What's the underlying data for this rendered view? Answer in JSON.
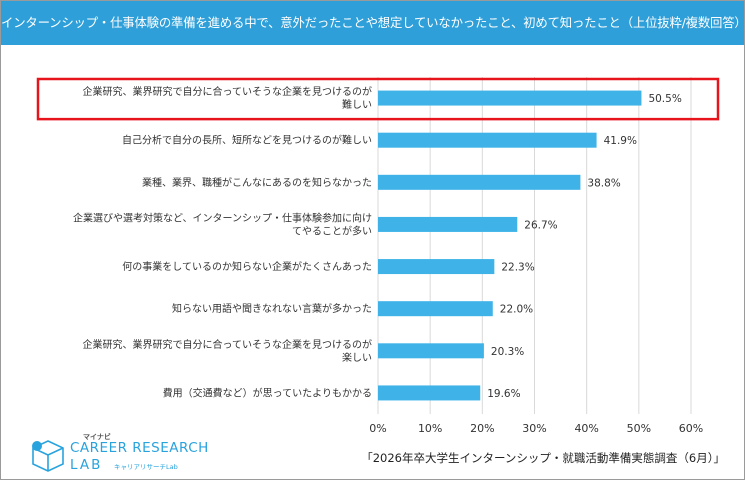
{
  "header": {
    "title": "インターンシップ・仕事体験の準備を進める中で、意外だったことや想定していなかったこと、初めて知ったこと（上位抜粋/複数回答）"
  },
  "chart_data": {
    "type": "bar",
    "orientation": "horizontal",
    "categories": [
      [
        "企業研究、業界研究で自分に合っていそうな企業を見つけるのが",
        "難しい"
      ],
      [
        "自己分析で自分の長所、短所などを見つけるのが難しい"
      ],
      [
        "業種、業界、職種がこんなにあるのを知らなかった"
      ],
      [
        "企業選びや選考対策など、インターンシップ・仕事体験参加に向け",
        "てやることが多い"
      ],
      [
        "何の事業をしているのか知らない企業がたくさんあった"
      ],
      [
        "知らない用語や聞きなれない言葉が多かった"
      ],
      [
        "企業研究、業界研究で自分に合っていそうな企業を見つけるのが",
        "楽しい"
      ],
      [
        "費用（交通費など）が思っていたよりもかかる"
      ]
    ],
    "values": [
      50.5,
      41.9,
      38.8,
      26.7,
      22.3,
      22.0,
      20.3,
      19.6
    ],
    "value_labels": [
      "50.5%",
      "41.9%",
      "38.8%",
      "26.7%",
      "22.3%",
      "22.0%",
      "20.3%",
      "19.6%"
    ],
    "xlim": [
      0,
      60
    ],
    "xticks": [
      "0%",
      "10%",
      "20%",
      "30%",
      "40%",
      "50%",
      "60%"
    ],
    "highlight_index": 0,
    "bar_color": "#3fb3e8",
    "highlight_color": "#e8141c",
    "grid": true
  },
  "footer": {
    "source": "「2026年卒大学生インターンシップ・就職活動準備実態調査（6月）」"
  },
  "logo": {
    "small": "マイナビ",
    "main": "CAREER RESEARCH",
    "lab": "LAB",
    "sub": "キャリアリサーチLab"
  }
}
